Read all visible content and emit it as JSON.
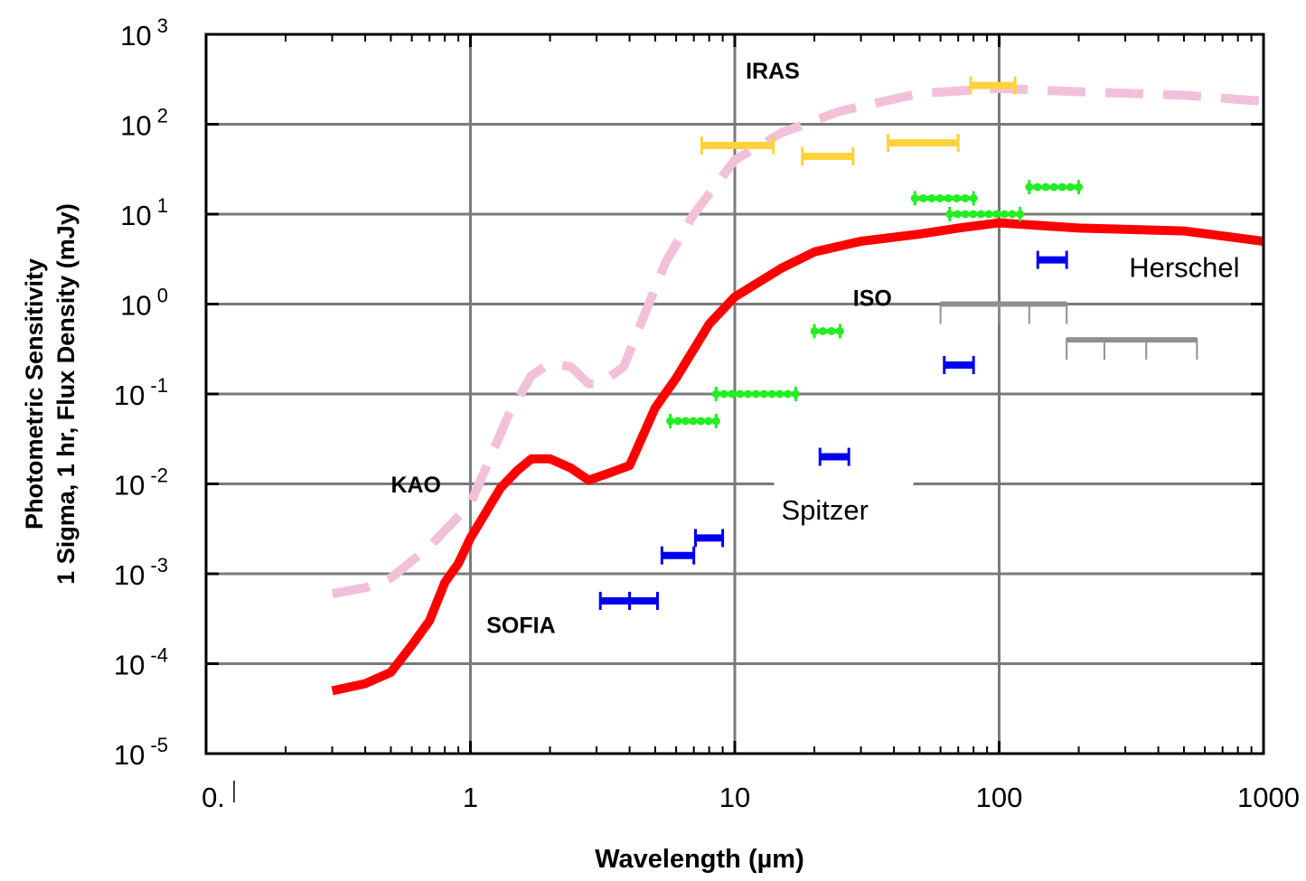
{
  "chart_data": {
    "type": "line",
    "xlabel": "Wavelength (µm)",
    "ylabel_line1": "Photometric Sensitivity",
    "ylabel_line2": "1 Sigma, 1 hr, Flux Density (mJy)",
    "x_scale": "log",
    "y_scale": "log",
    "xlim": [
      0.1,
      1000
    ],
    "ylim": [
      1e-05,
      1000
    ],
    "x_tick_labels": [
      {
        "value": 0.1,
        "label": "0."
      },
      {
        "value": 1,
        "label": "1"
      },
      {
        "value": 10,
        "label": "10"
      },
      {
        "value": 100,
        "label": "100"
      },
      {
        "value": 1000,
        "label": "1000"
      }
    ],
    "y_tick_labels": [
      {
        "value": 1000,
        "base": "10",
        "exp": "3"
      },
      {
        "value": 100,
        "base": "10",
        "exp": "2"
      },
      {
        "value": 10,
        "base": "10",
        "exp": "1"
      },
      {
        "value": 1,
        "base": "10",
        "exp": "0"
      },
      {
        "value": 0.1,
        "base": "10",
        "exp": "-1"
      },
      {
        "value": 0.01,
        "base": "10",
        "exp": "-2"
      },
      {
        "value": 0.001,
        "base": "10",
        "exp": "-3"
      },
      {
        "value": 0.0001,
        "base": "10",
        "exp": "-4"
      },
      {
        "value": 1e-05,
        "base": "10",
        "exp": "-5"
      }
    ],
    "grid": true,
    "series": [
      {
        "name": "KAO",
        "style": "dashed-line",
        "color": "#f2c1d9",
        "points": [
          [
            0.3,
            0.0006
          ],
          [
            0.4,
            0.0007
          ],
          [
            0.5,
            0.0009
          ],
          [
            0.7,
            0.002
          ],
          [
            1.0,
            0.006
          ],
          [
            1.4,
            0.06
          ],
          [
            1.7,
            0.16
          ],
          [
            2.0,
            0.22
          ],
          [
            2.4,
            0.2
          ],
          [
            2.8,
            0.13
          ],
          [
            3.1,
            0.13
          ],
          [
            3.8,
            0.2
          ],
          [
            4.5,
            0.7
          ],
          [
            5.5,
            3.0
          ],
          [
            7.0,
            10
          ],
          [
            10,
            40
          ],
          [
            15,
            80
          ],
          [
            25,
            140
          ],
          [
            50,
            220
          ],
          [
            100,
            250
          ],
          [
            200,
            230
          ],
          [
            500,
            210
          ],
          [
            1000,
            180
          ]
        ]
      },
      {
        "name": "SOFIA",
        "style": "solid-line",
        "color": "#ff0000",
        "points": [
          [
            0.3,
            5e-05
          ],
          [
            0.4,
            6e-05
          ],
          [
            0.5,
            8e-05
          ],
          [
            0.6,
            0.00016
          ],
          [
            0.7,
            0.0003
          ],
          [
            0.8,
            0.0008
          ],
          [
            0.9,
            0.0013
          ],
          [
            1.0,
            0.0025
          ],
          [
            1.3,
            0.009
          ],
          [
            1.5,
            0.014
          ],
          [
            1.7,
            0.019
          ],
          [
            2.0,
            0.019
          ],
          [
            2.4,
            0.015
          ],
          [
            2.8,
            0.011
          ],
          [
            3.3,
            0.013
          ],
          [
            4.0,
            0.016
          ],
          [
            5.0,
            0.07
          ],
          [
            6.0,
            0.15
          ],
          [
            8.0,
            0.6
          ],
          [
            10,
            1.2
          ],
          [
            15,
            2.5
          ],
          [
            20,
            3.8
          ],
          [
            30,
            5.0
          ],
          [
            50,
            6.0
          ],
          [
            70,
            7.0
          ],
          [
            100,
            8.0
          ],
          [
            200,
            7.0
          ],
          [
            500,
            6.5
          ],
          [
            1000,
            5.0
          ]
        ]
      }
    ],
    "bar_groups": [
      {
        "name": "IRAS",
        "color": "#ffd23c",
        "style": "solid",
        "bars": [
          {
            "x0": 7.5,
            "x1": 14,
            "y": 58
          },
          {
            "x0": 18,
            "x1": 28,
            "y": 44
          },
          {
            "x0": 38,
            "x1": 70,
            "y": 62
          },
          {
            "x0": 78,
            "x1": 115,
            "y": 270
          }
        ]
      },
      {
        "name": "ISO",
        "color": "#22ee22",
        "style": "dotted",
        "bars": [
          {
            "x0": 5.7,
            "x1": 8.5,
            "y": 0.05
          },
          {
            "x0": 8.5,
            "x1": 17,
            "y": 0.1
          },
          {
            "x0": 20,
            "x1": 25,
            "y": 0.5
          },
          {
            "x0": 48,
            "x1": 80,
            "y": 15
          },
          {
            "x0": 65,
            "x1": 120,
            "y": 10
          },
          {
            "x0": 130,
            "x1": 200,
            "y": 20
          }
        ]
      },
      {
        "name": "Spitzer",
        "color": "#0000ee",
        "style": "solid",
        "bars": [
          {
            "x0": 3.1,
            "x1": 4.0,
            "y": 0.0005
          },
          {
            "x0": 4.0,
            "x1": 5.1,
            "y": 0.0005
          },
          {
            "x0": 5.3,
            "x1": 7.0,
            "y": 0.0016
          },
          {
            "x0": 7.1,
            "x1": 9.0,
            "y": 0.0025
          },
          {
            "x0": 21,
            "x1": 27,
            "y": 0.02
          },
          {
            "x0": 62,
            "x1": 80,
            "y": 0.21
          },
          {
            "x0": 140,
            "x1": 180,
            "y": 3.1
          }
        ]
      },
      {
        "name": "Herschel",
        "color": "#909090",
        "style": "solid",
        "bars": [
          {
            "x0": 60,
            "x1": 180,
            "y": 1.0,
            "ticks": [
              60,
              100,
              130,
              180
            ]
          },
          {
            "x0": 180,
            "x1": 560,
            "y": 0.4,
            "ticks": [
              180,
              250,
              360,
              560
            ]
          }
        ]
      }
    ],
    "annotations": [
      {
        "text": "IRAS",
        "x": 11,
        "y": 320,
        "bold": true
      },
      {
        "text": "ISO",
        "x": 28,
        "y": 0.95,
        "bold": true
      },
      {
        "text": "KAO",
        "x": 0.5,
        "y": 0.008,
        "bold": true
      },
      {
        "text": "SOFIA",
        "x": 1.15,
        "y": 0.00022,
        "bold": true
      },
      {
        "text": "Spitzer",
        "x": 15,
        "y": 0.004,
        "bold": false
      },
      {
        "text": "Herschel",
        "x": 310,
        "y": 2.0,
        "bold": false
      }
    ]
  }
}
